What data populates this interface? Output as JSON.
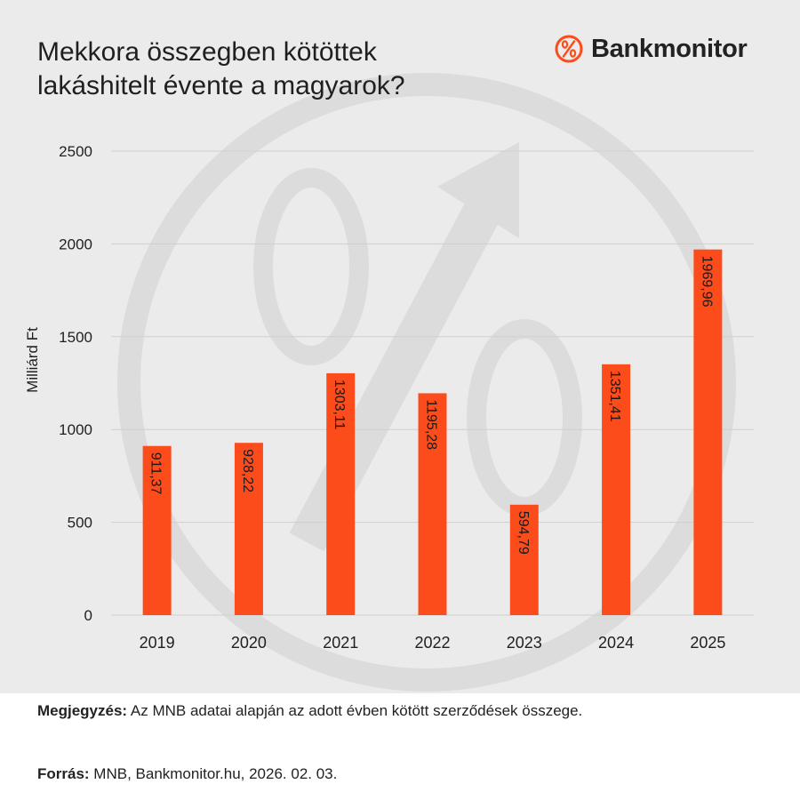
{
  "title_lines": [
    "Mekkora összegben kötöttek",
    "lakáshitelt évente a magyarok?"
  ],
  "brand": {
    "name": "Bankmonitor",
    "icon": "percent-circle-icon",
    "accent": "#fc4c1c"
  },
  "colors": {
    "bar": "#fc4c1c",
    "background": "#ebebeb",
    "grid": "#cfcfcf",
    "watermark": "#dcdcdc"
  },
  "chart_data": {
    "type": "bar",
    "categories": [
      "2019",
      "2020",
      "2021",
      "2022",
      "2023",
      "2024",
      "2025"
    ],
    "values": [
      911.37,
      928.22,
      1303.11,
      1195.28,
      594.79,
      1351.41,
      1969.96
    ],
    "data_labels": [
      "911,37",
      "928,22",
      "1303,11",
      "1195,28",
      "594,79",
      "1351,41",
      "1969,96"
    ],
    "ylabel": "Milliárd Ft",
    "xlabel": "",
    "ylim": [
      0,
      2500
    ],
    "yticks": [
      0,
      500,
      1000,
      1500,
      2000,
      2500
    ],
    "grid": true,
    "legend": "none"
  },
  "footer": {
    "note_label": "Megjegyzés:",
    "note_text": " Az MNB adatai alapján az adott évben kötött szerződések összege.",
    "source_label": "Forrás:",
    "source_text": " MNB, Bankmonitor.hu, 2026. 02. 03."
  }
}
